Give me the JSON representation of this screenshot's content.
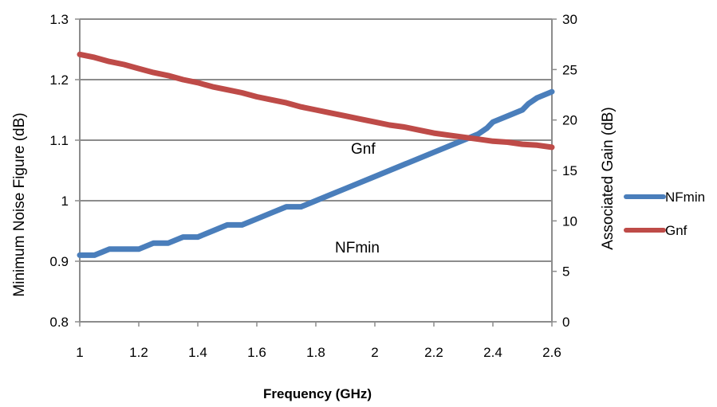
{
  "chart_data": {
    "type": "line",
    "title": "",
    "xlabel": "Frequency (GHz)",
    "ylabel": "Minimum Noise Figure (dB)",
    "y2label": "Associated Gain (dB)",
    "xlim": [
      1,
      2.6
    ],
    "ylim": [
      0.8,
      1.3
    ],
    "y2lim": [
      0,
      30
    ],
    "x_ticks": [
      "1",
      "1.2",
      "1.4",
      "1.6",
      "1.8",
      "2",
      "2.2",
      "2.4",
      "2.6"
    ],
    "y_ticks": [
      "0.8",
      "0.9",
      "1",
      "1.1",
      "1.2",
      "1.3"
    ],
    "y2_ticks": [
      "0",
      "5",
      "10",
      "15",
      "20",
      "25",
      "30"
    ],
    "grid": "horizontal",
    "legend_position": "right",
    "series": [
      {
        "name": "NFmin",
        "axis": "left",
        "color": "#4a7ebb",
        "x": [
          1.0,
          1.05,
          1.1,
          1.15,
          1.2,
          1.25,
          1.3,
          1.35,
          1.4,
          1.45,
          1.5,
          1.55,
          1.6,
          1.65,
          1.7,
          1.72,
          1.75,
          1.8,
          1.85,
          1.9,
          2.0,
          2.1,
          2.2,
          2.3,
          2.35,
          2.38,
          2.4,
          2.45,
          2.5,
          2.52,
          2.55,
          2.6
        ],
        "y": [
          0.91,
          0.91,
          0.92,
          0.92,
          0.92,
          0.93,
          0.93,
          0.94,
          0.94,
          0.95,
          0.96,
          0.96,
          0.97,
          0.98,
          0.99,
          0.99,
          0.99,
          1.0,
          1.01,
          1.02,
          1.04,
          1.06,
          1.08,
          1.1,
          1.11,
          1.12,
          1.13,
          1.14,
          1.15,
          1.16,
          1.17,
          1.18
        ]
      },
      {
        "name": "Gnf",
        "axis": "right",
        "color": "#be4b48",
        "x": [
          1.0,
          1.05,
          1.1,
          1.15,
          1.2,
          1.25,
          1.3,
          1.35,
          1.4,
          1.45,
          1.5,
          1.55,
          1.6,
          1.65,
          1.7,
          1.75,
          1.8,
          1.85,
          1.9,
          1.95,
          2.0,
          2.05,
          2.1,
          2.15,
          2.2,
          2.25,
          2.3,
          2.35,
          2.4,
          2.45,
          2.5,
          2.55,
          2.6
        ],
        "y": [
          26.5,
          26.2,
          25.8,
          25.5,
          25.1,
          24.7,
          24.4,
          24.0,
          23.7,
          23.3,
          23.0,
          22.7,
          22.3,
          22.0,
          21.7,
          21.3,
          21.0,
          20.7,
          20.4,
          20.1,
          19.8,
          19.5,
          19.3,
          19.0,
          18.7,
          18.5,
          18.3,
          18.1,
          17.9,
          17.8,
          17.6,
          17.5,
          17.3
        ]
      }
    ],
    "annotations": [
      "Gnf",
      "NFmin"
    ]
  }
}
